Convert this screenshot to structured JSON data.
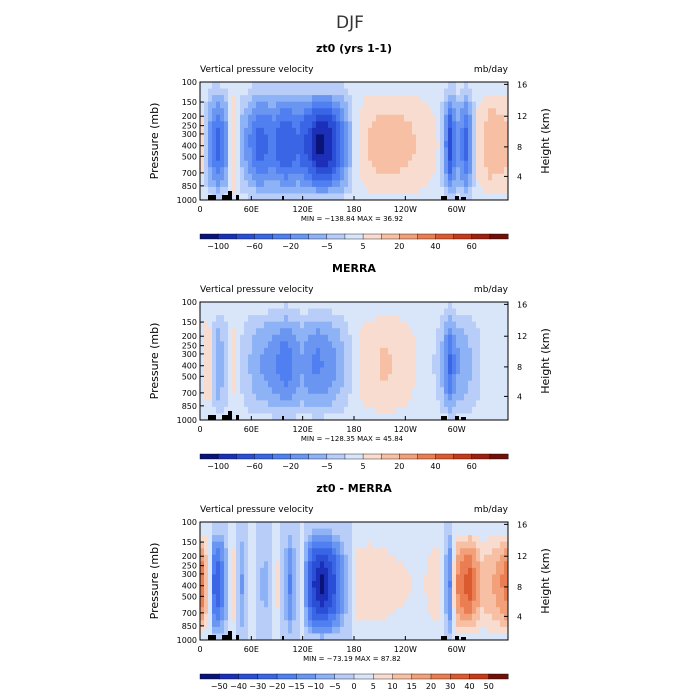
{
  "figure": {
    "title": "DJF"
  },
  "chart_data": [
    {
      "type": "heatmap",
      "title": "zt0 (yrs 1-1)",
      "left_subtitle": "Vertical pressure velocity",
      "right_subtitle": "mb/day",
      "ylabel": "Pressure (mb)",
      "ylabel_right": "Height (km)",
      "x_ticks": [
        "0",
        "60E",
        "120E",
        "180",
        "120W",
        "60W"
      ],
      "y_ticks": [
        "100",
        "150",
        "200",
        "250",
        "300",
        "400",
        "500",
        "700",
        "850",
        "1000"
      ],
      "right_ticks": [
        "16",
        "12",
        "8",
        "4"
      ],
      "min_max": "MIN = −138.84   MAX =  36.92",
      "colorbar_labels": [
        "−100",
        "−60",
        "−20",
        "−5",
        "5",
        "20",
        "40",
        "60"
      ],
      "profile": [
        {
          "lon": 0,
          "value": 20
        },
        {
          "lon": 10,
          "value": -30
        },
        {
          "lon": 20,
          "value": -60
        },
        {
          "lon": 30,
          "value": -40
        },
        {
          "lon": 38,
          "value": 25
        },
        {
          "lon": 48,
          "value": -20
        },
        {
          "lon": 60,
          "value": -45
        },
        {
          "lon": 70,
          "value": -60
        },
        {
          "lon": 85,
          "value": -50
        },
        {
          "lon": 100,
          "value": -65
        },
        {
          "lon": 115,
          "value": -55
        },
        {
          "lon": 130,
          "value": -75
        },
        {
          "lon": 140,
          "value": -95
        },
        {
          "lon": 155,
          "value": -80
        },
        {
          "lon": 168,
          "value": -45
        },
        {
          "lon": 180,
          "value": -5
        },
        {
          "lon": 195,
          "value": 18
        },
        {
          "lon": 215,
          "value": 25
        },
        {
          "lon": 240,
          "value": 22
        },
        {
          "lon": 260,
          "value": 15
        },
        {
          "lon": 280,
          "value": 5
        },
        {
          "lon": 293,
          "value": -75
        },
        {
          "lon": 300,
          "value": -30
        },
        {
          "lon": 312,
          "value": -60
        },
        {
          "lon": 325,
          "value": 10
        },
        {
          "lon": 340,
          "value": 28
        },
        {
          "lon": 360,
          "value": 20
        }
      ]
    },
    {
      "type": "heatmap",
      "title": "MERRA",
      "left_subtitle": "Vertical pressure velocity",
      "right_subtitle": "mb/day",
      "ylabel": "Pressure (mb)",
      "ylabel_right": "Height (km)",
      "x_ticks": [
        "0",
        "60E",
        "120E",
        "180",
        "120W",
        "60W"
      ],
      "y_ticks": [
        "100",
        "150",
        "200",
        "250",
        "300",
        "400",
        "500",
        "700",
        "850",
        "1000"
      ],
      "right_ticks": [
        "16",
        "12",
        "8",
        "4"
      ],
      "min_max": "MIN = −128.35   MAX =  45.84",
      "colorbar_labels": [
        "−100",
        "−60",
        "−20",
        "−5",
        "5",
        "20",
        "40",
        "60"
      ],
      "profile": [
        {
          "lon": 0,
          "value": -5
        },
        {
          "lon": 10,
          "value": 18
        },
        {
          "lon": 20,
          "value": -30
        },
        {
          "lon": 30,
          "value": -15
        },
        {
          "lon": 38,
          "value": 12
        },
        {
          "lon": 50,
          "value": -10
        },
        {
          "lon": 65,
          "value": -25
        },
        {
          "lon": 80,
          "value": -35
        },
        {
          "lon": 100,
          "value": -50
        },
        {
          "lon": 120,
          "value": -30
        },
        {
          "lon": 135,
          "value": -45
        },
        {
          "lon": 155,
          "value": -35
        },
        {
          "lon": 175,
          "value": -8
        },
        {
          "lon": 190,
          "value": 10
        },
        {
          "lon": 215,
          "value": 20
        },
        {
          "lon": 235,
          "value": 15
        },
        {
          "lon": 255,
          "value": 5
        },
        {
          "lon": 280,
          "value": -10
        },
        {
          "lon": 292,
          "value": -55
        },
        {
          "lon": 302,
          "value": -30
        },
        {
          "lon": 315,
          "value": -20
        },
        {
          "lon": 330,
          "value": -5
        },
        {
          "lon": 345,
          "value": 2
        },
        {
          "lon": 360,
          "value": -5
        }
      ]
    },
    {
      "type": "heatmap",
      "title": "zt0 - MERRA",
      "left_subtitle": "Vertical pressure velocity",
      "right_subtitle": "mb/day",
      "ylabel": "Pressure (mb)",
      "ylabel_right": "Height (km)",
      "x_ticks": [
        "0",
        "60E",
        "120E",
        "180",
        "120W",
        "60W"
      ],
      "y_ticks": [
        "100",
        "150",
        "200",
        "250",
        "300",
        "400",
        "500",
        "700",
        "850",
        "1000"
      ],
      "right_ticks": [
        "16",
        "12",
        "8",
        "4"
      ],
      "min_max": "MIN = −73.19   MAX =  87.82",
      "colorbar_labels": [
        "−50",
        "−40",
        "−30",
        "−20",
        "−15",
        "−10",
        "−5",
        "0",
        "5",
        "10",
        "15",
        "20",
        "30",
        "40",
        "50"
      ],
      "profile": [
        {
          "lon": 0,
          "value": 35
        },
        {
          "lon": 10,
          "value": 10
        },
        {
          "lon": 18,
          "value": -35
        },
        {
          "lon": 28,
          "value": -20
        },
        {
          "lon": 38,
          "value": 15
        },
        {
          "lon": 48,
          "value": -15
        },
        {
          "lon": 60,
          "value": 8
        },
        {
          "lon": 75,
          "value": -10
        },
        {
          "lon": 90,
          "value": 10
        },
        {
          "lon": 105,
          "value": -20
        },
        {
          "lon": 118,
          "value": 5
        },
        {
          "lon": 130,
          "value": -35
        },
        {
          "lon": 142,
          "value": -45
        },
        {
          "lon": 155,
          "value": -35
        },
        {
          "lon": 170,
          "value": -10
        },
        {
          "lon": 185,
          "value": 10
        },
        {
          "lon": 200,
          "value": 12
        },
        {
          "lon": 230,
          "value": 8
        },
        {
          "lon": 260,
          "value": 5
        },
        {
          "lon": 280,
          "value": 12
        },
        {
          "lon": 292,
          "value": -20
        },
        {
          "lon": 300,
          "value": 25
        },
        {
          "lon": 315,
          "value": 35
        },
        {
          "lon": 330,
          "value": 15
        },
        {
          "lon": 345,
          "value": 20
        },
        {
          "lon": 360,
          "value": 30
        }
      ]
    }
  ],
  "colors": {
    "colorbar_main": [
      "#0a1478",
      "#1c2fb8",
      "#2a4fd6",
      "#3a66e6",
      "#4f7ff0",
      "#6a96f2",
      "#8eb2f6",
      "#b8cdf8",
      "#d9e6fa",
      "#f9dcd0",
      "#f7c0a4",
      "#f2a07a",
      "#ea7d52",
      "#dc5a30",
      "#c53a18",
      "#9e2010",
      "#701008"
    ],
    "colorbar_diff": [
      "#0a1478",
      "#1c2fb8",
      "#2a4fd6",
      "#3a66e6",
      "#4f7ff0",
      "#6a96f2",
      "#8eb2f6",
      "#b8cdf8",
      "#d9e6fa",
      "#f9dcd0",
      "#f7c0a4",
      "#f2a07a",
      "#ea7d52",
      "#dc5a30",
      "#c53a18",
      "#701008"
    ]
  }
}
